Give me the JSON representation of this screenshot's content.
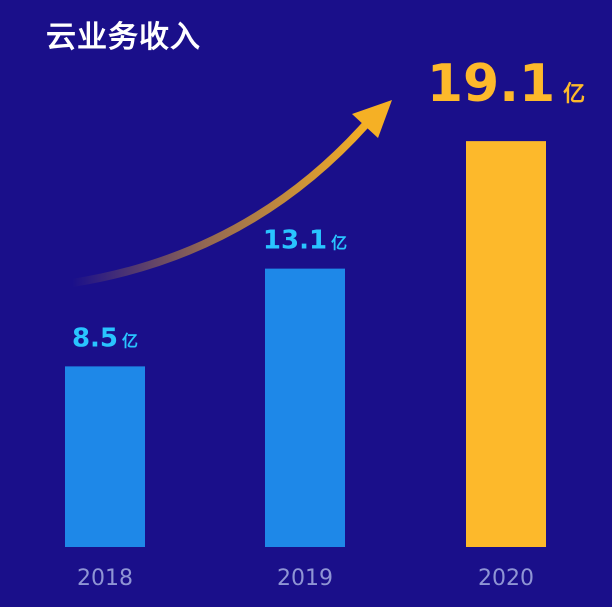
{
  "chart_data": {
    "type": "bar",
    "title": "云业务收入",
    "categories": [
      "2018",
      "2019",
      "2020"
    ],
    "values": [
      8.5,
      13.1,
      19.1
    ],
    "value_labels": [
      "8.5",
      "13.1",
      "19.1"
    ],
    "unit": "亿",
    "ylim": [
      0,
      21
    ],
    "grid": false,
    "colors": {
      "background": "#1a0f8a",
      "bar_default": "#1e88e8",
      "bar_highlight": "#fdb92b",
      "label_default": "#29c4ff",
      "label_highlight": "#fdb92b",
      "tick_label": "#8f95d4",
      "arrow": "#f5b025"
    },
    "highlight_index": 2
  }
}
